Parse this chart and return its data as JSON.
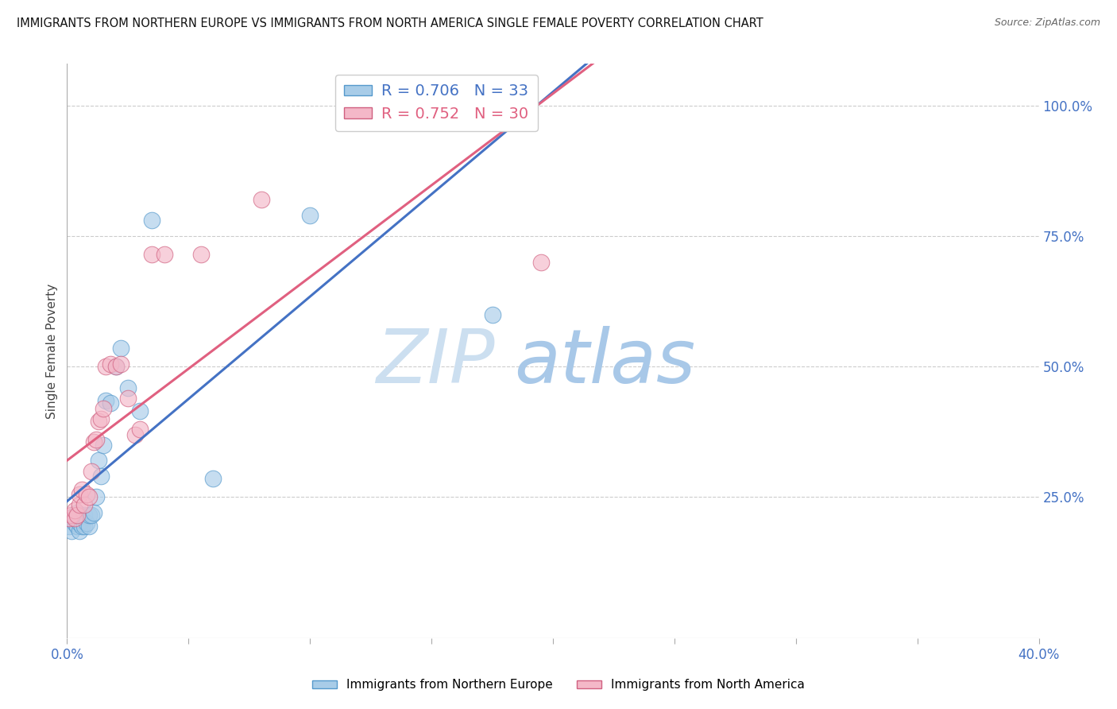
{
  "title": "IMMIGRANTS FROM NORTHERN EUROPE VS IMMIGRANTS FROM NORTH AMERICA SINGLE FEMALE POVERTY CORRELATION CHART",
  "source": "Source: ZipAtlas.com",
  "ylabel": "Single Female Poverty",
  "legend_label1": "Immigrants from Northern Europe",
  "legend_label2": "Immigrants from North America",
  "r1": 0.706,
  "n1": 33,
  "r2": 0.752,
  "n2": 30,
  "color1": "#a8cce8",
  "color2": "#f4b8c8",
  "color1_line": "#4472c4",
  "color2_line": "#e06080",
  "color1_edge": "#5599cc",
  "color2_edge": "#d06080",
  "xlim": [
    0.0,
    0.4
  ],
  "ylim": [
    -0.02,
    1.08
  ],
  "xticks": [
    0.0,
    0.05,
    0.1,
    0.15,
    0.2,
    0.25,
    0.3,
    0.35,
    0.4
  ],
  "xticklabels": [
    "0.0%",
    "",
    "",
    "",
    "",
    "",
    "",
    "",
    "40.0%"
  ],
  "yticks_right": [
    0.25,
    0.5,
    0.75,
    1.0
  ],
  "yticklabels_right": [
    "25.0%",
    "50.0%",
    "75.0%",
    "100.0%"
  ],
  "scatter1_x": [
    0.001,
    0.001,
    0.002,
    0.003,
    0.003,
    0.004,
    0.004,
    0.005,
    0.005,
    0.006,
    0.006,
    0.007,
    0.007,
    0.008,
    0.009,
    0.009,
    0.01,
    0.011,
    0.012,
    0.013,
    0.014,
    0.015,
    0.016,
    0.018,
    0.02,
    0.022,
    0.025,
    0.03,
    0.035,
    0.06,
    0.1,
    0.13,
    0.175
  ],
  "scatter1_y": [
    0.195,
    0.21,
    0.185,
    0.2,
    0.215,
    0.195,
    0.22,
    0.185,
    0.2,
    0.205,
    0.195,
    0.215,
    0.195,
    0.2,
    0.195,
    0.215,
    0.215,
    0.22,
    0.25,
    0.32,
    0.29,
    0.35,
    0.435,
    0.43,
    0.5,
    0.535,
    0.46,
    0.415,
    0.78,
    0.285,
    0.79,
    0.97,
    0.6
  ],
  "scatter2_x": [
    0.001,
    0.002,
    0.003,
    0.003,
    0.004,
    0.005,
    0.005,
    0.006,
    0.007,
    0.008,
    0.009,
    0.01,
    0.011,
    0.012,
    0.013,
    0.014,
    0.015,
    0.016,
    0.018,
    0.02,
    0.022,
    0.025,
    0.028,
    0.03,
    0.035,
    0.04,
    0.055,
    0.08,
    0.17,
    0.195
  ],
  "scatter2_y": [
    0.21,
    0.215,
    0.21,
    0.225,
    0.215,
    0.235,
    0.255,
    0.265,
    0.235,
    0.255,
    0.25,
    0.3,
    0.355,
    0.36,
    0.395,
    0.4,
    0.42,
    0.5,
    0.505,
    0.5,
    0.505,
    0.44,
    0.37,
    0.38,
    0.715,
    0.715,
    0.715,
    0.82,
    0.97,
    0.7
  ],
  "watermark_zip": "ZIP",
  "watermark_atlas": "atlas",
  "watermark_color_zip": "#ccdff0",
  "watermark_color_atlas": "#a8c8e8",
  "background_color": "#ffffff",
  "grid_color": "#cccccc"
}
